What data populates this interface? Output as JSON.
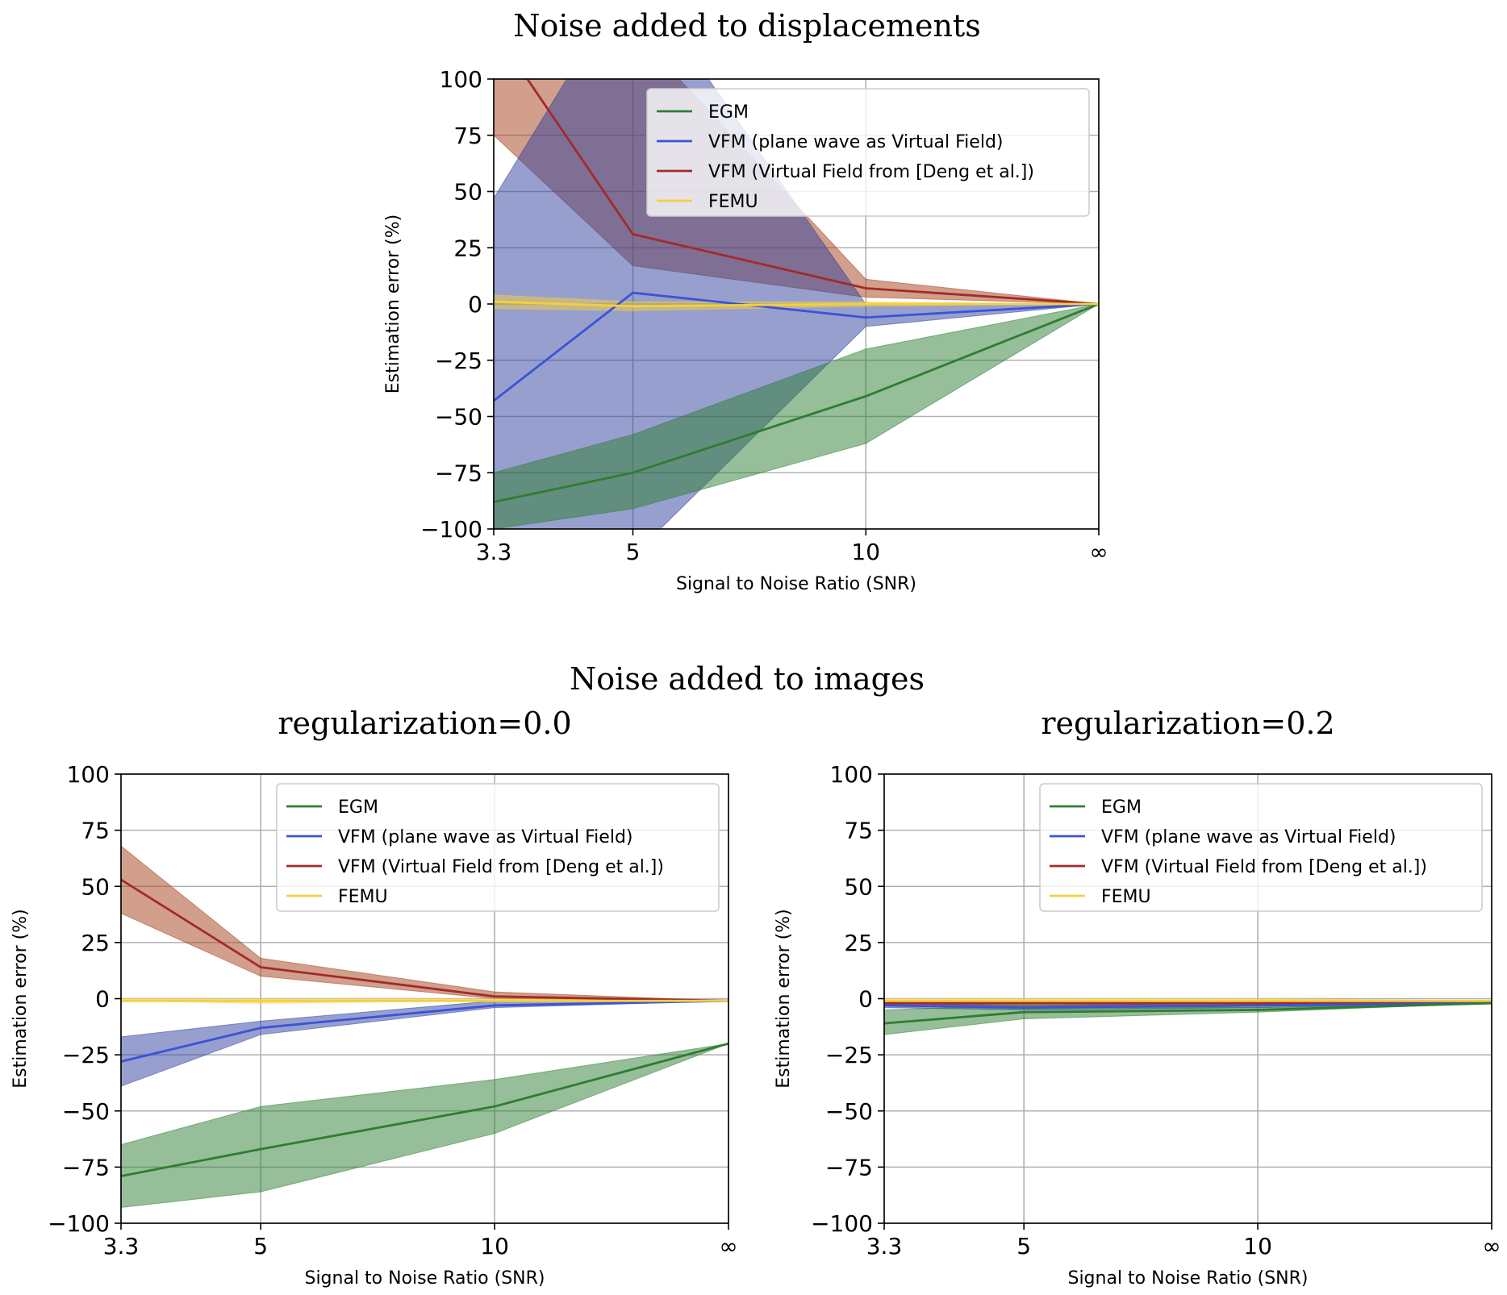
{
  "figure": {
    "top_title": "Noise added to displacements",
    "bottom_title": "Noise added to images"
  },
  "colors": {
    "EGM": "#2e7d32",
    "VFM_plane": "#3b53d6",
    "VFM_deng": "#a32a2a",
    "FEMU": "#f4d03f",
    "EGM_band": "#2e7d32",
    "VFM_plane_band": "#2d3f9e",
    "VFM_deng_band": "#a3401a",
    "FEMU_band": "#f4d03f"
  },
  "chart_data": [
    {
      "type": "line",
      "subtitle": "",
      "xlabel": "Signal to Noise Ratio (SNR)",
      "ylabel": "Estimation error (%)",
      "x_tick_labels": [
        "3.3",
        "5",
        "10",
        "∞"
      ],
      "ylim": [
        -100,
        100
      ],
      "y_ticks": [
        100,
        75,
        50,
        25,
        0,
        -25,
        -50,
        -75,
        -100
      ],
      "y_tick_labels": [
        "100",
        "75",
        "50",
        "25",
        "0",
        "−25",
        "−50",
        "−75",
        "−100"
      ],
      "grid": true,
      "legend_position": "top-right",
      "series": [
        {
          "key": "EGM",
          "name": "EGM",
          "values": [
            -88,
            -75,
            -41,
            0
          ],
          "lower": [
            -100,
            -91,
            -62,
            0
          ],
          "upper": [
            -75,
            -58,
            -20,
            0
          ]
        },
        {
          "key": "VFM_plane",
          "name": "VFM (plane wave as Virtual Field)",
          "values": [
            -43,
            5,
            -6,
            0
          ],
          "lower": [
            -165,
            -112,
            -10,
            0
          ],
          "upper": [
            47,
            148,
            0,
            0
          ]
        },
        {
          "key": "VFM_deng",
          "name": "VFM (Virtual Field from [Deng et al.])",
          "values": [
            122,
            31,
            7,
            0
          ],
          "lower": [
            75,
            17,
            3,
            0
          ],
          "upper": [
            168,
            122,
            11,
            0
          ]
        },
        {
          "key": "FEMU",
          "name": "FEMU",
          "values": [
            1,
            -1,
            0,
            0
          ],
          "lower": [
            -2,
            -3,
            -1,
            0
          ],
          "upper": [
            4,
            1,
            1,
            0
          ]
        }
      ]
    },
    {
      "type": "line",
      "subtitle": "regularization=0.0",
      "xlabel": "Signal to Noise Ratio (SNR)",
      "ylabel": "Estimation error (%)",
      "x_tick_labels": [
        "3.3",
        "5",
        "10",
        "∞"
      ],
      "ylim": [
        -100,
        100
      ],
      "y_ticks": [
        100,
        75,
        50,
        25,
        0,
        -25,
        -50,
        -75,
        -100
      ],
      "y_tick_labels": [
        "100",
        "75",
        "50",
        "25",
        "0",
        "−25",
        "−50",
        "−75",
        "−100"
      ],
      "grid": true,
      "legend_position": "top-right",
      "series": [
        {
          "key": "EGM",
          "name": "EGM",
          "values": [
            -79,
            -67,
            -48,
            -20
          ],
          "lower": [
            -93,
            -86,
            -60,
            -20
          ],
          "upper": [
            -65,
            -48,
            -36,
            -20
          ]
        },
        {
          "key": "VFM_plane",
          "name": "VFM (plane wave as Virtual Field)",
          "values": [
            -28,
            -13,
            -3,
            -1
          ],
          "lower": [
            -39,
            -16,
            -4,
            -1
          ],
          "upper": [
            -17,
            -10,
            -1,
            -1
          ]
        },
        {
          "key": "VFM_deng",
          "name": "VFM (Virtual Field from [Deng et al.])",
          "values": [
            53,
            14,
            1,
            -1
          ],
          "lower": [
            38,
            10,
            0,
            -1
          ],
          "upper": [
            68,
            18,
            3,
            -1
          ]
        },
        {
          "key": "FEMU",
          "name": "FEMU",
          "values": [
            -1,
            -1,
            -1,
            -1
          ],
          "lower": [
            -1,
            -2,
            -1,
            -1
          ],
          "upper": [
            0,
            0,
            0,
            -1
          ]
        }
      ]
    },
    {
      "type": "line",
      "subtitle": "regularization=0.2",
      "xlabel": "Signal to Noise Ratio (SNR)",
      "ylabel": "Estimation error (%)",
      "x_tick_labels": [
        "3.3",
        "5",
        "10",
        "∞"
      ],
      "ylim": [
        -100,
        100
      ],
      "y_ticks": [
        100,
        75,
        50,
        25,
        0,
        -25,
        -50,
        -75,
        -100
      ],
      "y_tick_labels": [
        "100",
        "75",
        "50",
        "25",
        "0",
        "−25",
        "−50",
        "−75",
        "−100"
      ],
      "grid": true,
      "legend_position": "top-right",
      "series": [
        {
          "key": "EGM",
          "name": "EGM",
          "values": [
            -11,
            -6,
            -5,
            -2
          ],
          "lower": [
            -16,
            -9,
            -6,
            -2
          ],
          "upper": [
            -5,
            -3,
            -4,
            -2
          ]
        },
        {
          "key": "VFM_plane",
          "name": "VFM (plane wave as Virtual Field)",
          "values": [
            -3,
            -4,
            -3,
            -2
          ],
          "lower": [
            -4,
            -5,
            -4,
            -2
          ],
          "upper": [
            -2,
            -3,
            -2,
            -2
          ]
        },
        {
          "key": "VFM_deng",
          "name": "VFM (Virtual Field from [Deng et al.])",
          "values": [
            -2,
            -2,
            -2,
            -2
          ],
          "lower": [
            -3,
            -3,
            -3,
            -2
          ],
          "upper": [
            -1,
            -1,
            -1,
            -2
          ]
        },
        {
          "key": "FEMU",
          "name": "FEMU",
          "values": [
            -1,
            -1,
            -1,
            -1
          ],
          "lower": [
            -2,
            -2,
            -2,
            -1
          ],
          "upper": [
            0,
            0,
            0,
            -1
          ]
        }
      ]
    }
  ]
}
